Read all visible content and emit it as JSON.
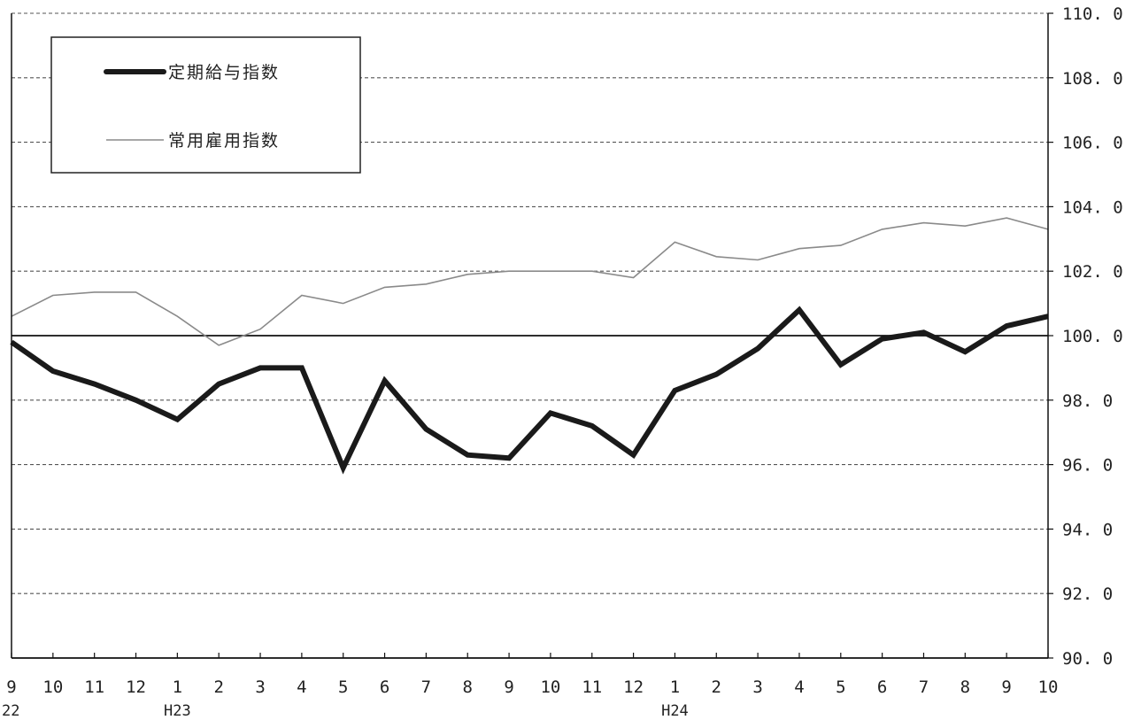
{
  "chart_data": {
    "type": "line",
    "x": [
      "9",
      "10",
      "11",
      "12",
      "1",
      "2",
      "3",
      "4",
      "5",
      "6",
      "7",
      "8",
      "9",
      "10",
      "11",
      "12",
      "1",
      "2",
      "3",
      "4",
      "5",
      "6",
      "7",
      "8",
      "9",
      "10"
    ],
    "x_secondary_labels": [
      {
        "index": 0,
        "label": "22"
      },
      {
        "index": 4,
        "label": "H23"
      },
      {
        "index": 16,
        "label": "H24"
      }
    ],
    "series": [
      {
        "name": "定期給与指数",
        "style": "thick",
        "values": [
          99.8,
          98.9,
          98.5,
          98.0,
          97.4,
          98.5,
          99.0,
          99.0,
          95.9,
          98.6,
          97.1,
          96.3,
          96.2,
          97.6,
          97.2,
          96.3,
          98.3,
          98.8,
          99.6,
          100.8,
          99.1,
          99.9,
          100.1,
          99.5,
          100.3,
          100.6
        ]
      },
      {
        "name": "常用雇用指数",
        "style": "thin",
        "values": [
          100.6,
          101.25,
          101.35,
          101.35,
          100.6,
          99.7,
          100.2,
          101.25,
          101.0,
          101.5,
          101.6,
          101.9,
          102.0,
          102.0,
          102.0,
          101.8,
          102.9,
          102.45,
          102.35,
          102.7,
          102.8,
          103.3,
          103.5,
          103.4,
          103.65,
          103.3
        ]
      }
    ],
    "ylim": [
      90,
      110
    ],
    "yticks": [
      "110. 0",
      "108. 0",
      "106. 0",
      "104. 0",
      "102. 0",
      "100. 0",
      "98. 0",
      "96. 0",
      "94. 0",
      "92. 0",
      "90. 0"
    ],
    "ytick_values": [
      110,
      108,
      106,
      104,
      102,
      100,
      98,
      96,
      94,
      92,
      90
    ],
    "grid": true,
    "legend_position": "top-left",
    "colors": {
      "thick": "#1a1a1a",
      "thin": "#8a8a8a",
      "grid": "#555555",
      "baseline": "#111111"
    }
  }
}
